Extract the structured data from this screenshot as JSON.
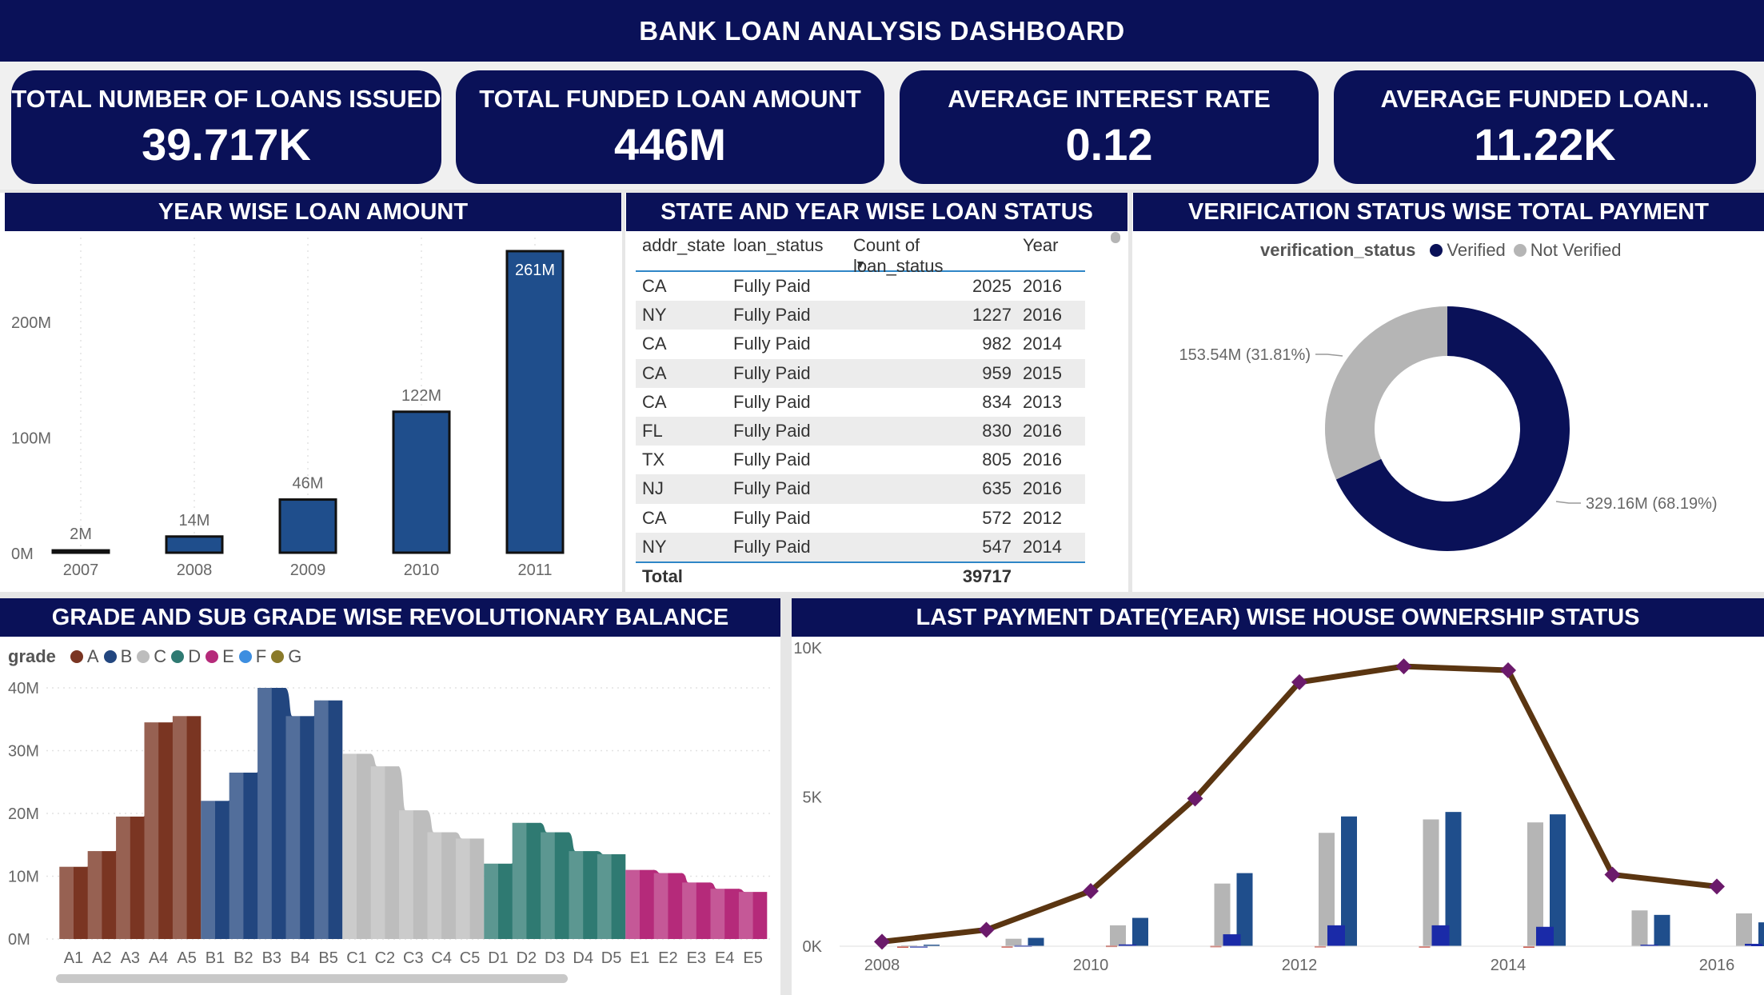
{
  "title": "BANK LOAN ANALYSIS DASHBOARD",
  "kpis": [
    {
      "label": "TOTAL NUMBER OF LOANS ISSUED",
      "value": "39.717K"
    },
    {
      "label": "TOTAL FUNDED LOAN AMOUNT",
      "value": "446M"
    },
    {
      "label": "AVERAGE INTEREST RATE",
      "value": "0.12"
    },
    {
      "label": "AVERAGE FUNDED LOAN...",
      "value": "11.22K"
    }
  ],
  "panels": {
    "year_loan": "YEAR WISE LOAN AMOUNT",
    "state_table": "STATE AND YEAR WISE LOAN STATUS",
    "verification": "VERIFICATION STATUS WISE TOTAL PAYMENT",
    "grade": "GRADE AND SUB GRADE WISE REVOLUTIONARY BALANCE",
    "payment": "LAST PAYMENT DATE(YEAR) WISE HOUSE OWNERSHIP STATUS"
  },
  "table": {
    "headers": [
      "addr_state",
      "loan_status",
      "Count of loan_status",
      "Year"
    ],
    "rows": [
      [
        "CA",
        "Fully Paid",
        "2025",
        "2016"
      ],
      [
        "NY",
        "Fully Paid",
        "1227",
        "2016"
      ],
      [
        "CA",
        "Fully Paid",
        "982",
        "2014"
      ],
      [
        "CA",
        "Fully Paid",
        "959",
        "2015"
      ],
      [
        "CA",
        "Fully Paid",
        "834",
        "2013"
      ],
      [
        "FL",
        "Fully Paid",
        "830",
        "2016"
      ],
      [
        "TX",
        "Fully Paid",
        "805",
        "2016"
      ],
      [
        "NJ",
        "Fully Paid",
        "635",
        "2016"
      ],
      [
        "CA",
        "Fully Paid",
        "572",
        "2012"
      ],
      [
        "NY",
        "Fully Paid",
        "547",
        "2014"
      ]
    ],
    "total_label": "Total",
    "total_value": "39717"
  },
  "colors": {
    "navy": "#0a1158",
    "bar_blue": "#1f4e8c",
    "line_brown": "#5a3511",
    "marker_purple": "#6b1a6b",
    "grade_A": "#7a3522",
    "grade_B": "#22467f",
    "grade_C": "#bdbdbd",
    "grade_D": "#2f7a72",
    "grade_E": "#b52a7a",
    "grade_F": "#3d8ee0",
    "grade_G": "#8a7a2a",
    "verified": "#0a1158",
    "not_verified": "#b5b5b5"
  },
  "chart_data": [
    {
      "type": "bar",
      "categories": [
        "2007",
        "2008",
        "2009",
        "2010",
        "2011"
      ],
      "values": [
        2,
        14,
        46,
        122,
        261
      ],
      "data_labels": [
        "2M",
        "14M",
        "46M",
        "122M",
        "261M"
      ],
      "y_ticks": [
        "0M",
        "100M",
        "200M"
      ],
      "ylim": [
        0,
        270
      ],
      "grid": false
    },
    {
      "type": "pie",
      "legend_title": "verification_status",
      "labels": [
        "Verified",
        "Not Verified"
      ],
      "values": [
        329.16,
        153.54
      ],
      "data_labels": [
        "329.16M (68.19%)",
        "153.54M (31.81%)"
      ],
      "legend_position": "top"
    },
    {
      "type": "bar",
      "legend_title": "grade",
      "legend": [
        "A",
        "B",
        "C",
        "D",
        "E",
        "F",
        "G"
      ],
      "categories": [
        "A1",
        "A2",
        "A3",
        "A4",
        "A5",
        "B1",
        "B2",
        "B3",
        "B4",
        "B5",
        "C1",
        "C2",
        "C3",
        "C4",
        "C5",
        "D1",
        "D2",
        "D3",
        "D4",
        "D5",
        "E1",
        "E2",
        "E3",
        "E4",
        "E5"
      ],
      "values": [
        11.5,
        14,
        19.5,
        34.5,
        35.5,
        22,
        26.5,
        40,
        35.5,
        38,
        29.5,
        27.5,
        20.5,
        17,
        16,
        12,
        18.5,
        17,
        14,
        13.5,
        11,
        10.5,
        9,
        8,
        7.5
      ],
      "y_ticks": [
        "0M",
        "10M",
        "20M",
        "30M",
        "40M"
      ],
      "ylim": [
        0,
        40
      ],
      "grid": true
    },
    {
      "type": "line",
      "x": [
        2008,
        2009,
        2010,
        2011,
        2012,
        2013,
        2014,
        2015,
        2016
      ],
      "x_ticks": [
        "2008",
        "2010",
        "2012",
        "2014",
        "2016"
      ],
      "y_ticks": [
        "0K",
        "5K",
        "10K"
      ],
      "ylim": [
        0,
        10000
      ],
      "series": [
        {
          "values": [
            150,
            550,
            1850,
            4950,
            8850,
            9380,
            9250,
            2400,
            2000
          ]
        }
      ],
      "bar_series": [
        {
          "values": [
            30,
            250,
            700,
            2100,
            3800,
            4250,
            4150,
            1200,
            1100
          ]
        },
        {
          "values": [
            50,
            280,
            950,
            2450,
            4350,
            4500,
            4420,
            1050,
            800
          ]
        },
        {
          "values": [
            10,
            30,
            60,
            400,
            700,
            700,
            650,
            50,
            80
          ]
        },
        {
          "values": [
            5,
            10,
            25,
            20,
            15,
            10,
            5,
            0,
            0
          ]
        }
      ],
      "grid": false
    }
  ]
}
